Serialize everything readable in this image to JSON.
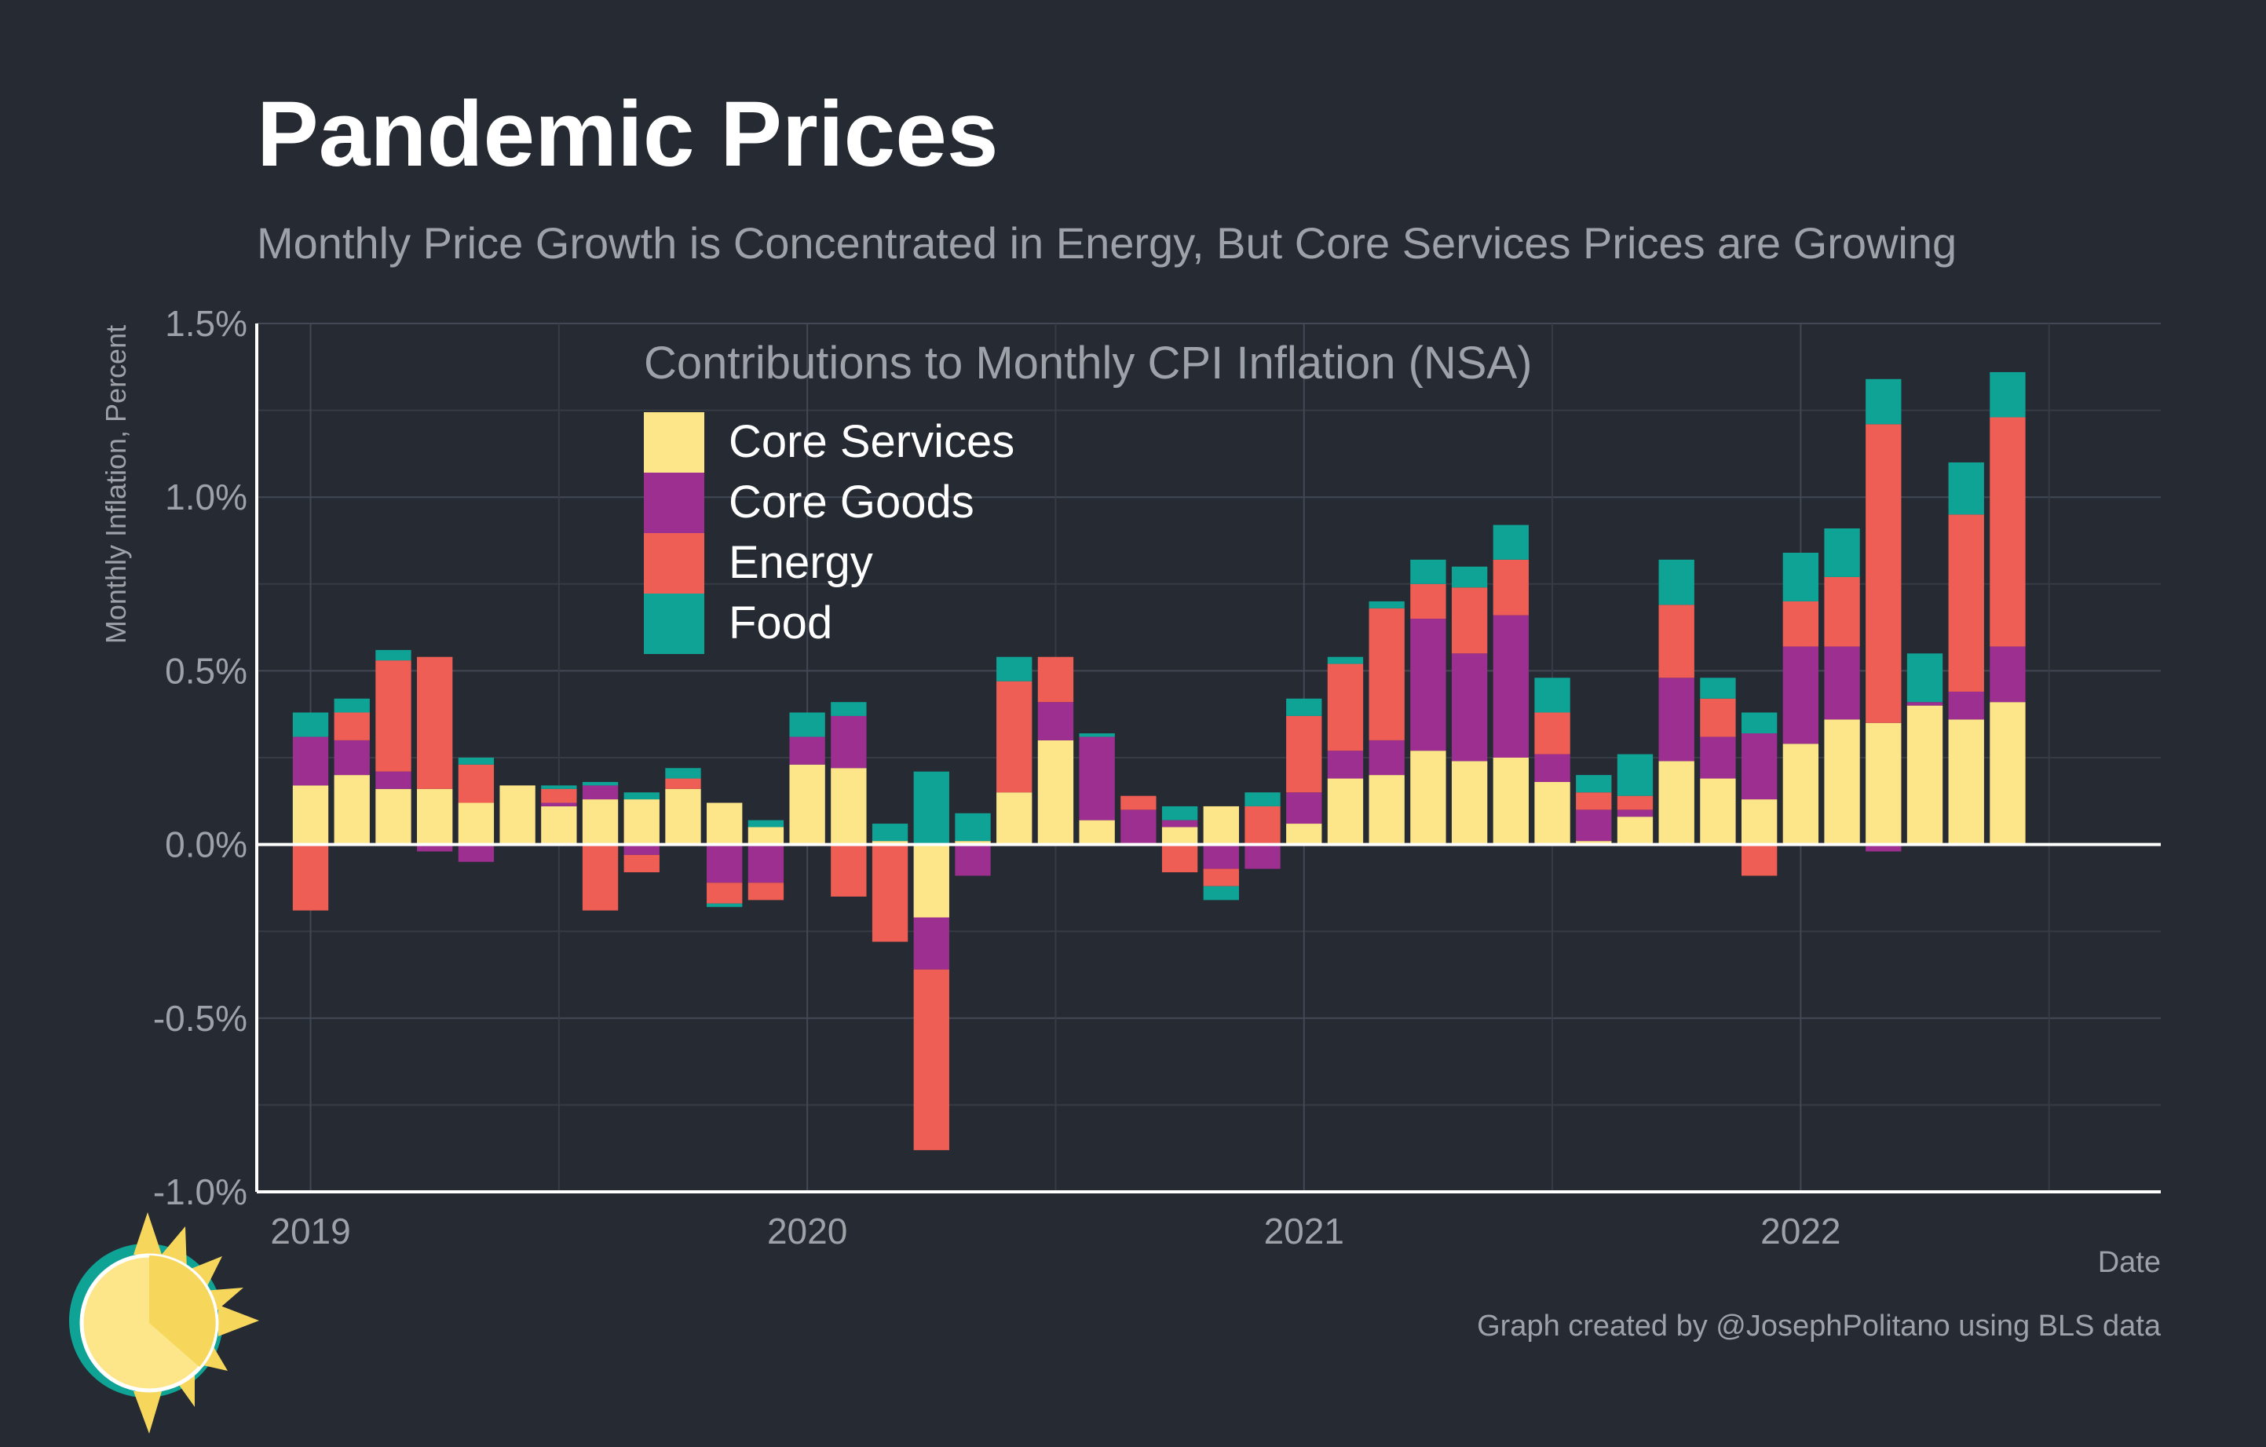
{
  "title": "Pandemic Prices",
  "subtitle": "Monthly Price Growth is Concentrated in Energy, But Core Services Prices are Growing",
  "credit": "Graph created by @JosephPolitano using BLS data",
  "chart_data": {
    "type": "bar",
    "stacked": true,
    "legend_title": "Contributions to Monthly CPI Inflation (NSA)",
    "legend_position": "top-left",
    "xlabel": "Date",
    "ylabel": "Monthly Inflation, Percent",
    "ylim": [
      -1.0,
      1.5
    ],
    "y_ticks": [
      -1.0,
      -0.5,
      0.0,
      0.5,
      1.0,
      1.5
    ],
    "y_tick_labels": [
      "-1.0%",
      "-0.5%",
      "0.0%",
      "0.5%",
      "1.0%",
      "1.5%"
    ],
    "x_tick_labels": [
      "2019",
      "2020",
      "2021",
      "2022"
    ],
    "grid": true,
    "categories": [
      "2019-01",
      "2019-02",
      "2019-03",
      "2019-04",
      "2019-05",
      "2019-06",
      "2019-07",
      "2019-08",
      "2019-09",
      "2019-10",
      "2019-11",
      "2019-12",
      "2020-01",
      "2020-02",
      "2020-03",
      "2020-04",
      "2020-05",
      "2020-06",
      "2020-07",
      "2020-08",
      "2020-09",
      "2020-10",
      "2020-11",
      "2020-12",
      "2021-01",
      "2021-02",
      "2021-03",
      "2021-04",
      "2021-05",
      "2021-06",
      "2021-07",
      "2021-08",
      "2021-09",
      "2021-10",
      "2021-11",
      "2021-12",
      "2022-01",
      "2022-02",
      "2022-03",
      "2022-04",
      "2022-05",
      "2022-06"
    ],
    "series": [
      {
        "name": "Core Services",
        "color": "#fde68a",
        "values": [
          0.17,
          0.2,
          0.16,
          0.16,
          0.12,
          0.17,
          0.11,
          0.13,
          0.13,
          0.16,
          0.12,
          0.05,
          0.23,
          0.22,
          0.01,
          -0.21,
          0.01,
          0.15,
          0.3,
          0.07,
          0.0,
          0.05,
          0.11,
          0.0,
          0.06,
          0.19,
          0.2,
          0.27,
          0.24,
          0.25,
          0.18,
          0.01,
          0.08,
          0.24,
          0.19,
          0.13,
          0.29,
          0.36,
          0.35,
          0.4,
          0.36,
          0.41
        ]
      },
      {
        "name": "Core Goods",
        "color": "#9c2f8f",
        "values": [
          0.14,
          0.1,
          0.05,
          -0.02,
          -0.05,
          0.0,
          0.01,
          0.04,
          -0.03,
          0.0,
          -0.11,
          -0.11,
          0.08,
          0.15,
          0.0,
          -0.15,
          -0.09,
          0.0,
          0.11,
          0.24,
          0.1,
          0.02,
          -0.07,
          -0.07,
          0.09,
          0.08,
          0.1,
          0.38,
          0.31,
          0.41,
          0.08,
          0.09,
          0.02,
          0.24,
          0.12,
          0.19,
          0.28,
          0.21,
          -0.02,
          0.01,
          0.08,
          0.16
        ]
      },
      {
        "name": "Energy",
        "color": "#ee5e54",
        "values": [
          -0.19,
          0.08,
          0.32,
          0.38,
          0.11,
          0.0,
          0.04,
          -0.19,
          -0.05,
          0.03,
          -0.06,
          -0.05,
          0.0,
          -0.15,
          -0.28,
          -0.52,
          0.0,
          0.32,
          0.13,
          0.0,
          0.04,
          -0.08,
          -0.05,
          0.11,
          0.22,
          0.25,
          0.38,
          0.1,
          0.19,
          0.16,
          0.12,
          0.05,
          0.04,
          0.21,
          0.11,
          -0.09,
          0.13,
          0.2,
          0.86,
          0.0,
          0.51,
          0.66
        ]
      },
      {
        "name": "Food",
        "color": "#0fa396",
        "values": [
          0.07,
          0.04,
          0.03,
          0.0,
          0.02,
          0.0,
          0.01,
          0.01,
          0.02,
          0.03,
          -0.01,
          0.02,
          0.07,
          0.04,
          0.05,
          0.21,
          0.08,
          0.07,
          0.0,
          0.01,
          0.0,
          0.04,
          -0.04,
          0.04,
          0.05,
          0.02,
          0.02,
          0.07,
          0.06,
          0.1,
          0.1,
          0.05,
          0.12,
          0.13,
          0.06,
          0.06,
          0.14,
          0.14,
          0.13,
          0.14,
          0.15,
          0.13
        ]
      }
    ]
  }
}
